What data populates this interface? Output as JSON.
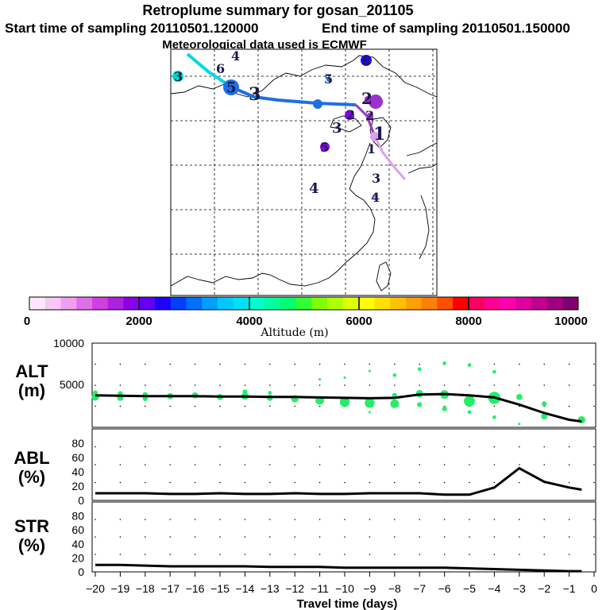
{
  "header": {
    "title": "Retroplume summary for gosan_201105",
    "start_label": "Start time of sampling 20110501.120000",
    "end_label": "End time of sampling 20110501.150000",
    "met_label": "Meteorological data used is ECMWF"
  },
  "colorbar": {
    "label": "Altitude (m)",
    "ticks": [
      "0",
      "2000",
      "4000",
      "6000",
      "8000",
      "10000"
    ],
    "colors": [
      "#ffe8ff",
      "#f8c8f8",
      "#f0a0f0",
      "#e070e8",
      "#d040e0",
      "#b020e0",
      "#8a00e8",
      "#6200f0",
      "#2000ff",
      "#0040ff",
      "#0070ff",
      "#00a0ff",
      "#00c8ff",
      "#00e0f0",
      "#00ffd0",
      "#00ffa0",
      "#00ff70",
      "#30ff30",
      "#80ff00",
      "#b0ff00",
      "#e0ff00",
      "#ffff00",
      "#ffe000",
      "#ffc000",
      "#ffa000",
      "#ff8000",
      "#ff5000",
      "#ff0000",
      "#ff0060",
      "#ff0090",
      "#ff00b0",
      "#e000a0",
      "#c00090",
      "#a00080",
      "#800070"
    ]
  },
  "map": {
    "day_labels": [
      "1",
      "1",
      "2",
      "2",
      "2",
      "3",
      "3",
      "3",
      "3",
      "4",
      "4",
      "4",
      "5",
      "5",
      "5",
      "6",
      "6"
    ],
    "trajectory_colors": [
      "#dda0ee",
      "#9933cc",
      "#1e6fe6",
      "#00d8e8"
    ]
  },
  "chart_data": [
    {
      "type": "line",
      "panel": "ALT",
      "ylabel": "ALT (m)",
      "ylabel_line1": "ALT",
      "ylabel_line2": "(m)",
      "ylim": [
        0,
        10000
      ],
      "yticks": [
        "10000",
        "5000"
      ],
      "xlim": [
        -20,
        0
      ],
      "x": [
        -20,
        -19,
        -18,
        -17,
        -16,
        -15,
        -14,
        -13,
        -12,
        -11,
        -10,
        -9,
        -8,
        -7,
        -6,
        -5,
        -4,
        -3,
        -2,
        -1,
        -0.5
      ],
      "values": [
        3800,
        3750,
        3700,
        3700,
        3700,
        3650,
        3650,
        3600,
        3600,
        3550,
        3500,
        3450,
        3500,
        3900,
        3950,
        3800,
        3550,
        2700,
        1700,
        900,
        700
      ],
      "plume_points": [
        {
          "x": -20,
          "y": 3600,
          "s": 6
        },
        {
          "x": -20,
          "y": 4100,
          "s": 4
        },
        {
          "x": -19,
          "y": 3500,
          "s": 5
        },
        {
          "x": -19,
          "y": 4000,
          "s": 4
        },
        {
          "x": -18,
          "y": 3400,
          "s": 4
        },
        {
          "x": -18,
          "y": 3900,
          "s": 4
        },
        {
          "x": -17,
          "y": 3700,
          "s": 5
        },
        {
          "x": -16,
          "y": 3800,
          "s": 5
        },
        {
          "x": -15,
          "y": 3600,
          "s": 5
        },
        {
          "x": -14,
          "y": 3700,
          "s": 6
        },
        {
          "x": -14,
          "y": 4200,
          "s": 4
        },
        {
          "x": -13,
          "y": 3500,
          "s": 5
        },
        {
          "x": -13,
          "y": 4100,
          "s": 3
        },
        {
          "x": -12,
          "y": 3400,
          "s": 6
        },
        {
          "x": -11,
          "y": 3200,
          "s": 7
        },
        {
          "x": -11,
          "y": 5700,
          "s": 2
        },
        {
          "x": -10,
          "y": 3000,
          "s": 8
        },
        {
          "x": -10,
          "y": 5900,
          "s": 2
        },
        {
          "x": -9,
          "y": 2900,
          "s": 8
        },
        {
          "x": -9,
          "y": 6700,
          "s": 2
        },
        {
          "x": -9,
          "y": 1800,
          "s": 2
        },
        {
          "x": -8,
          "y": 2800,
          "s": 7
        },
        {
          "x": -8,
          "y": 3800,
          "s": 4
        },
        {
          "x": -8,
          "y": 6200,
          "s": 3
        },
        {
          "x": -7,
          "y": 2700,
          "s": 4
        },
        {
          "x": -7,
          "y": 4000,
          "s": 6
        },
        {
          "x": -7,
          "y": 6900,
          "s": 3
        },
        {
          "x": -6,
          "y": 2200,
          "s": 4
        },
        {
          "x": -6,
          "y": 3900,
          "s": 7
        },
        {
          "x": -6,
          "y": 7600,
          "s": 3
        },
        {
          "x": -5,
          "y": 3100,
          "s": 9
        },
        {
          "x": -5,
          "y": 7400,
          "s": 3
        },
        {
          "x": -5,
          "y": 1800,
          "s": 3
        },
        {
          "x": -4,
          "y": 3500,
          "s": 10
        },
        {
          "x": -4,
          "y": 6600,
          "s": 3
        },
        {
          "x": -4,
          "y": 1200,
          "s": 3
        },
        {
          "x": -3,
          "y": 3600,
          "s": 5
        },
        {
          "x": -3,
          "y": 400,
          "s": 2
        },
        {
          "x": -2,
          "y": 2800,
          "s": 4
        },
        {
          "x": -2,
          "y": 1300,
          "s": 5
        },
        {
          "x": -0.5,
          "y": 900,
          "s": 6
        }
      ]
    },
    {
      "type": "line",
      "panel": "ABL",
      "ylabel": "ABL (%)",
      "ylabel_line1": "ABL",
      "ylabel_line2": "(%)",
      "ylim": [
        0,
        100
      ],
      "yticks": [
        "80",
        "60",
        "40",
        "20",
        "0"
      ],
      "xlim": [
        -20,
        0
      ],
      "x": [
        -20,
        -19,
        -18,
        -17,
        -16,
        -15,
        -14,
        -13,
        -12,
        -11,
        -10,
        -9,
        -8,
        -7,
        -6,
        -5,
        -4,
        -3,
        -2,
        -1,
        -0.5
      ],
      "values": [
        10,
        10,
        10,
        9,
        9,
        10,
        9,
        9,
        10,
        9,
        9,
        10,
        10,
        10,
        8,
        8,
        18,
        45,
        26,
        18,
        15
      ]
    },
    {
      "type": "line",
      "panel": "STR",
      "ylabel": "STR (%)",
      "ylabel_line1": "STR",
      "ylabel_line2": "(%)",
      "ylim": [
        0,
        100
      ],
      "yticks": [
        "80",
        "60",
        "40",
        "20",
        "0"
      ],
      "xlim": [
        -20,
        0
      ],
      "xlabel": "Travel time (days)",
      "xticks": [
        "−20",
        "−19",
        "−18",
        "−17",
        "−16",
        "−15",
        "−14",
        "−13",
        "−12",
        "−11",
        "−10",
        "−9",
        "−8",
        "−7",
        "−6",
        "−5",
        "−4",
        "−3",
        "−2",
        "−1",
        "0"
      ],
      "x": [
        -20,
        -19,
        -18,
        -17,
        -16,
        -15,
        -14,
        -13,
        -12,
        -11,
        -10,
        -9,
        -8,
        -7,
        -6,
        -5,
        -4,
        -3,
        -2,
        -1,
        -0.5
      ],
      "values": [
        10,
        10,
        9,
        8,
        8,
        8,
        8,
        7,
        7,
        7,
        6,
        6,
        6,
        6,
        6,
        5,
        4,
        3,
        2,
        1,
        1
      ]
    }
  ]
}
